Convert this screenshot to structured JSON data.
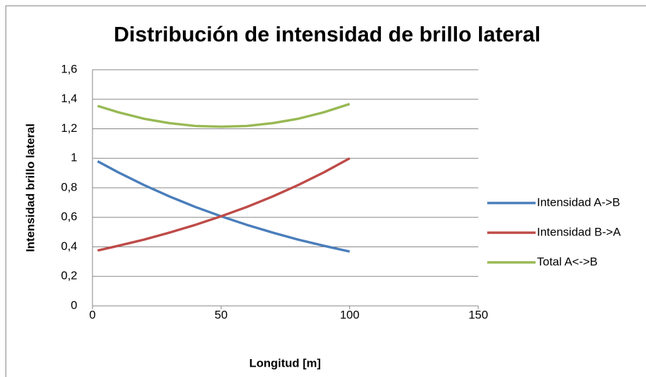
{
  "chart_data": {
    "type": "line",
    "title": "Distribución de intensidad de brillo lateral",
    "x_label": "Longitud [m]",
    "y_label": "Intensidad brillo lateral",
    "x": [
      2,
      10,
      20,
      30,
      40,
      50,
      60,
      70,
      80,
      90,
      100
    ],
    "series": [
      {
        "name": "Intensidad  A->B",
        "color": "#4a7ebb",
        "values": [
          0.98,
          0.905,
          0.819,
          0.741,
          0.67,
          0.607,
          0.549,
          0.497,
          0.449,
          0.407,
          0.368
        ]
      },
      {
        "name": "Intensidad  B->A",
        "color": "#be4b48",
        "values": [
          0.375,
          0.407,
          0.449,
          0.497,
          0.549,
          0.607,
          0.67,
          0.741,
          0.819,
          0.905,
          1.0
        ]
      },
      {
        "name": "Total A<->B",
        "color": "#98b954",
        "values": [
          1.355,
          1.312,
          1.268,
          1.238,
          1.219,
          1.214,
          1.219,
          1.238,
          1.268,
          1.312,
          1.368
        ]
      }
    ],
    "xlim": [
      0,
      150
    ],
    "xticks": [
      0,
      50,
      100,
      150
    ],
    "ylim": [
      0,
      1.6
    ],
    "yticks": [
      0,
      {
        "value": 0.2,
        "label": "0,2"
      },
      {
        "value": 0.4,
        "label": "0,4"
      },
      {
        "value": 0.6,
        "label": "0,6"
      },
      {
        "value": 0.8,
        "label": "0,8"
      },
      1,
      {
        "value": 1.2,
        "label": "1,2"
      },
      {
        "value": 1.4,
        "label": "1,4"
      },
      {
        "value": 1.6,
        "label": "1,6"
      }
    ],
    "grid": true,
    "legend": "right"
  }
}
